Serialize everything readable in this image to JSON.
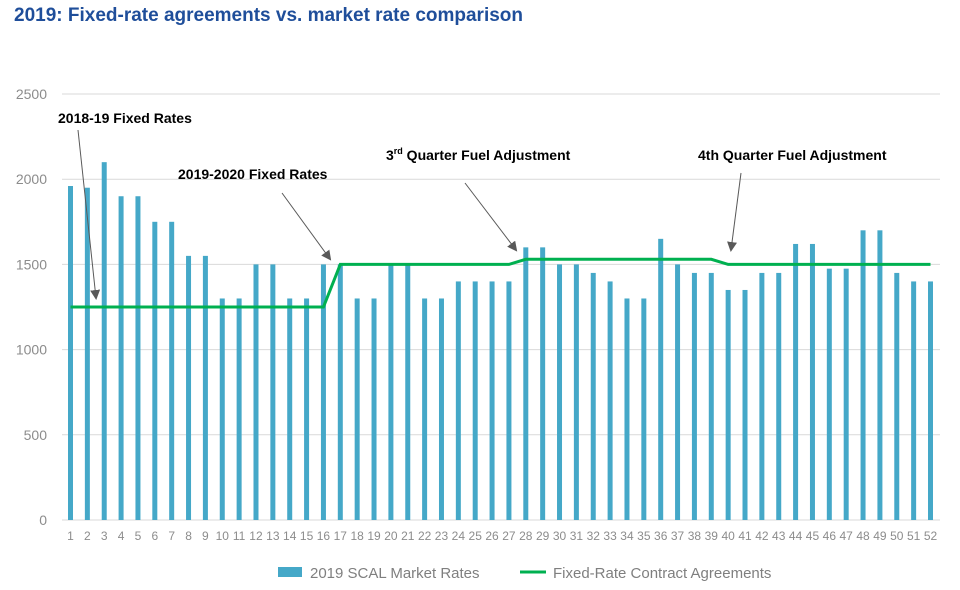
{
  "chart_data": {
    "type": "bar",
    "title": "2019: Fixed-rate agreements vs. market rate comparison",
    "xlabel": "",
    "ylabel": "",
    "ylim": [
      0,
      2500
    ],
    "yticks": [
      0,
      500,
      1000,
      1500,
      2000,
      2500
    ],
    "grid": true,
    "legend_position": "bottom",
    "categories": [
      "1",
      "2",
      "3",
      "4",
      "5",
      "6",
      "7",
      "8",
      "9",
      "10",
      "11",
      "12",
      "13",
      "14",
      "15",
      "16",
      "17",
      "18",
      "19",
      "20",
      "21",
      "22",
      "23",
      "24",
      "25",
      "26",
      "27",
      "28",
      "29",
      "30",
      "31",
      "32",
      "33",
      "34",
      "35",
      "36",
      "37",
      "38",
      "39",
      "40",
      "41",
      "42",
      "43",
      "44",
      "45",
      "46",
      "47",
      "48",
      "49",
      "50",
      "51",
      "52"
    ],
    "series": [
      {
        "name": "2019 SCAL Market Rates",
        "type": "bar",
        "color": "#45a8c8",
        "values": [
          1960,
          1950,
          2100,
          1900,
          1900,
          1750,
          1750,
          1550,
          1550,
          1300,
          1300,
          1500,
          1500,
          1300,
          1300,
          1500,
          1500,
          1300,
          1300,
          1500,
          1500,
          1300,
          1300,
          1400,
          1400,
          1400,
          1400,
          1600,
          1600,
          1500,
          1500,
          1450,
          1400,
          1300,
          1300,
          1650,
          1500,
          1450,
          1450,
          1350,
          1350,
          1450,
          1450,
          1620,
          1620,
          1475,
          1475,
          1700,
          1700,
          1450,
          1400,
          1400
        ]
      },
      {
        "name": "Fixed-Rate Contract Agreements",
        "type": "line",
        "color": "#00b050",
        "values": [
          1250,
          1250,
          1250,
          1250,
          1250,
          1250,
          1250,
          1250,
          1250,
          1250,
          1250,
          1250,
          1250,
          1250,
          1250,
          1250,
          1500,
          1500,
          1500,
          1500,
          1500,
          1500,
          1500,
          1500,
          1500,
          1500,
          1500,
          1530,
          1530,
          1530,
          1530,
          1530,
          1530,
          1530,
          1530,
          1530,
          1530,
          1530,
          1530,
          1500,
          1500,
          1500,
          1500,
          1500,
          1500,
          1500,
          1500,
          1500,
          1500,
          1500,
          1500,
          1500
        ]
      }
    ],
    "annotations": [
      {
        "text": "2018-19 Fixed Rates",
        "target_week": 2
      },
      {
        "text": "2019-2020 Fixed Rates",
        "target_week": 17
      },
      {
        "text_main": "3",
        "text_sup": "rd",
        "text_rest": " Quarter Fuel Adjustment",
        "target_week": 28
      },
      {
        "text": "4th Quarter Fuel Adjustment",
        "target_week": 40
      }
    ]
  }
}
